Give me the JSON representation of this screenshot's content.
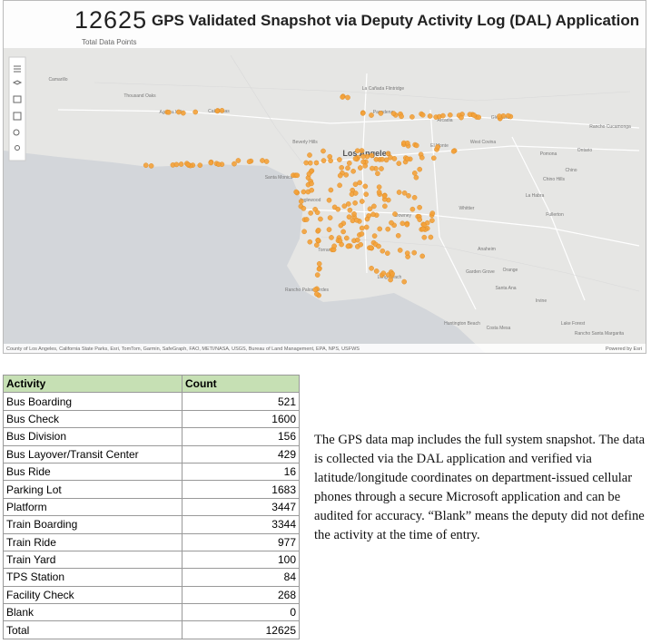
{
  "header": {
    "count": "12625",
    "title": "GPS Validated Snapshot via Deputy Activity Log (DAL) Application",
    "subtitle": "Total Data Points"
  },
  "map": {
    "labels": [
      "Camarillo",
      "Thousand Oaks",
      "Agoura Hills",
      "Calabasas",
      "La Cañada Flintridge",
      "Pasadena",
      "Arcadia",
      "Glendora",
      "West Covina",
      "Pomona",
      "Ontario",
      "Chino",
      "Chino Hills",
      "Beverly Hills",
      "Santa Monica",
      "Los Angeles",
      "El Monte",
      "Inglewood",
      "Downey",
      "Whittier",
      "La Habra",
      "Fullerton",
      "Anaheim",
      "Orange",
      "Torrance",
      "Long Beach",
      "Garden Grove",
      "Santa Ana",
      "Rancho Palos Verdes",
      "Huntington Beach",
      "Costa Mesa",
      "Irvine",
      "Lake Forest",
      "Rancho Santa Margarita",
      "Rancho Cucamonga"
    ],
    "attribution": "County of Los Angeles, California State Parks, Esri, TomTom, Garmin, SafeGraph, FAO, METI/NASA, USGS, Bureau of Land Management, EPA, NPS, USFWS",
    "credit": "Powered by Esri"
  },
  "table": {
    "header": [
      "Activity",
      "Count"
    ],
    "rows": [
      [
        "Bus Boarding",
        521
      ],
      [
        "Bus Check",
        1600
      ],
      [
        "Bus Division",
        156
      ],
      [
        "Bus Layover/Transit Center",
        429
      ],
      [
        "Bus Ride",
        16
      ],
      [
        "Parking Lot",
        1683
      ],
      [
        "Platform",
        3447
      ],
      [
        "Train Boarding",
        3344
      ],
      [
        "Train Ride",
        977
      ],
      [
        "Train Yard",
        100
      ],
      [
        "TPS Station",
        84
      ],
      [
        "Facility Check",
        268
      ],
      [
        "Blank",
        0
      ],
      [
        "Total",
        12625
      ]
    ]
  },
  "note": "The GPS data map includes the full system snapshot. The data is collected via the DAL application and verified via latitude/longitude coordinates on department-issued cellular phones through a secure Microsoft application and can be audited for accuracy. “Blank” means the deputy did not define the activity at the time of entry."
}
